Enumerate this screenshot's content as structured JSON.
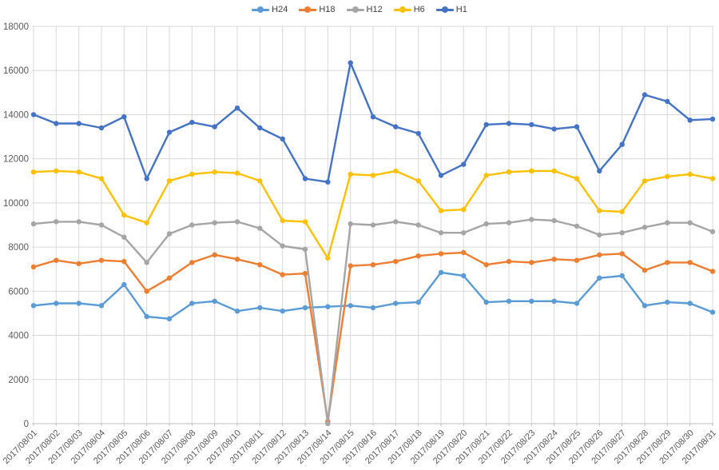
{
  "chart_data": {
    "type": "line",
    "title": "",
    "xlabel": "",
    "ylabel": "",
    "ylim": [
      0,
      18000
    ],
    "y_tick_step": 2000,
    "grid": true,
    "grid_color": "#d9d9d9",
    "axis_line_color": "#bfbfbf",
    "axis_text_color": "#595959",
    "legend_position": "top-center",
    "marker_style": "circle",
    "x_categories": [
      "2017/08/01",
      "2017/08/02",
      "2017/08/03",
      "2017/08/04",
      "2017/08/05",
      "2017/08/06",
      "2017/08/07",
      "2017/08/08",
      "2017/08/09",
      "2017/08/10",
      "2017/08/11",
      "2017/08/12",
      "2017/08/13",
      "2017/08/14",
      "2017/08/15",
      "2017/08/16",
      "2017/08/17",
      "2017/08/18",
      "2017/08/19",
      "2017/08/20",
      "2017/08/21",
      "2017/08/22",
      "2017/08/23",
      "2017/08/24",
      "2017/08/25",
      "2017/08/26",
      "2017/08/27",
      "2017/08/28",
      "2017/08/29",
      "2017/08/30",
      "2017/08/31"
    ],
    "series": [
      {
        "name": "H24",
        "color": "#5b9bd5",
        "values": [
          5350,
          5450,
          5450,
          5350,
          6300,
          4850,
          4750,
          5450,
          5550,
          5100,
          5250,
          5100,
          5250,
          5300,
          5350,
          5250,
          5450,
          5500,
          6850,
          6700,
          5500,
          5550,
          5550,
          5550,
          5450,
          6600,
          6700,
          5350,
          5500,
          5450,
          5050
        ]
      },
      {
        "name": "H18",
        "color": "#ed7d31",
        "values": [
          7100,
          7400,
          7250,
          7400,
          7350,
          6000,
          6600,
          7300,
          7650,
          7450,
          7200,
          6750,
          6800,
          100,
          7150,
          7200,
          7350,
          7600,
          7700,
          7750,
          7200,
          7350,
          7300,
          7450,
          7400,
          7650,
          7700,
          6950,
          7300,
          7300,
          6900
        ]
      },
      {
        "name": "H12",
        "color": "#a5a5a5",
        "values": [
          9050,
          9150,
          9150,
          9000,
          8450,
          7300,
          8600,
          9000,
          9100,
          9150,
          8850,
          8050,
          7900,
          0,
          9050,
          9000,
          9150,
          9000,
          8650,
          8650,
          9050,
          9100,
          9250,
          9200,
          8950,
          8550,
          8650,
          8900,
          9100,
          9100,
          8700
        ]
      },
      {
        "name": "H6",
        "color": "#ffc000",
        "values": [
          11400,
          11450,
          11400,
          11100,
          9450,
          9100,
          11000,
          11300,
          11400,
          11350,
          11000,
          9200,
          9150,
          7500,
          11300,
          11250,
          11450,
          11000,
          9650,
          9700,
          11250,
          11400,
          11450,
          11450,
          11100,
          9650,
          9600,
          11000,
          11200,
          11300,
          11100
        ]
      },
      {
        "name": "H1",
        "color": "#4472c4",
        "values": [
          14000,
          13600,
          13600,
          13400,
          13900,
          11100,
          13200,
          13650,
          13450,
          14300,
          13400,
          12900,
          11100,
          10950,
          16350,
          13900,
          13450,
          13150,
          11250,
          11750,
          13550,
          13600,
          13550,
          13350,
          13450,
          11450,
          12650,
          14900,
          14600,
          13750,
          13800
        ]
      }
    ]
  }
}
